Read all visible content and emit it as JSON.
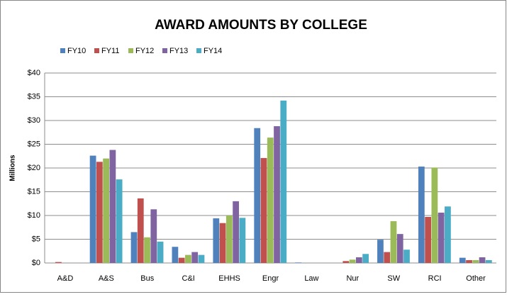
{
  "chart_data": {
    "type": "bar",
    "title": "AWARD AMOUNTS BY COLLEGE",
    "y_label": "Millions",
    "categories": [
      "A&D",
      "A&S",
      "Bus",
      "C&I",
      "EHHS",
      "Engr",
      "Law",
      "Nur",
      "SW",
      "RCI",
      "Other"
    ],
    "series": [
      {
        "name": "FY10",
        "color": "#4f81bd",
        "values": [
          0,
          22.6,
          6.5,
          3.4,
          9.4,
          28.4,
          0.1,
          0,
          4.9,
          20.3,
          1.1
        ]
      },
      {
        "name": "FY11",
        "color": "#c0504d",
        "values": [
          0.2,
          21.3,
          13.6,
          1.1,
          8.4,
          22.1,
          0,
          0.4,
          2.3,
          9.7,
          0.6
        ]
      },
      {
        "name": "FY12",
        "color": "#9bbb59",
        "values": [
          0,
          22.0,
          5.4,
          1.7,
          10.0,
          26.4,
          0,
          0.7,
          8.8,
          20.1,
          0.6
        ]
      },
      {
        "name": "FY13",
        "color": "#8064a2",
        "values": [
          0,
          23.8,
          11.3,
          2.3,
          13.0,
          28.8,
          0,
          1.2,
          6.1,
          10.6,
          1.2
        ]
      },
      {
        "name": "FY14",
        "color": "#4bacc6",
        "values": [
          0,
          17.6,
          4.5,
          1.7,
          9.5,
          34.2,
          0,
          1.9,
          2.8,
          11.9,
          0.6
        ]
      }
    ],
    "ylim": [
      0,
      40
    ],
    "yticks": [
      {
        "value": 0,
        "label": "$0"
      },
      {
        "value": 5,
        "label": "$5"
      },
      {
        "value": 10,
        "label": "$10"
      },
      {
        "value": 15,
        "label": "$15"
      },
      {
        "value": 20,
        "label": "$20"
      },
      {
        "value": 25,
        "label": "$25"
      },
      {
        "value": 30,
        "label": "$30"
      },
      {
        "value": 35,
        "label": "$35"
      },
      {
        "value": 40,
        "label": "$40"
      }
    ],
    "grid": true,
    "legend": "top-left"
  }
}
